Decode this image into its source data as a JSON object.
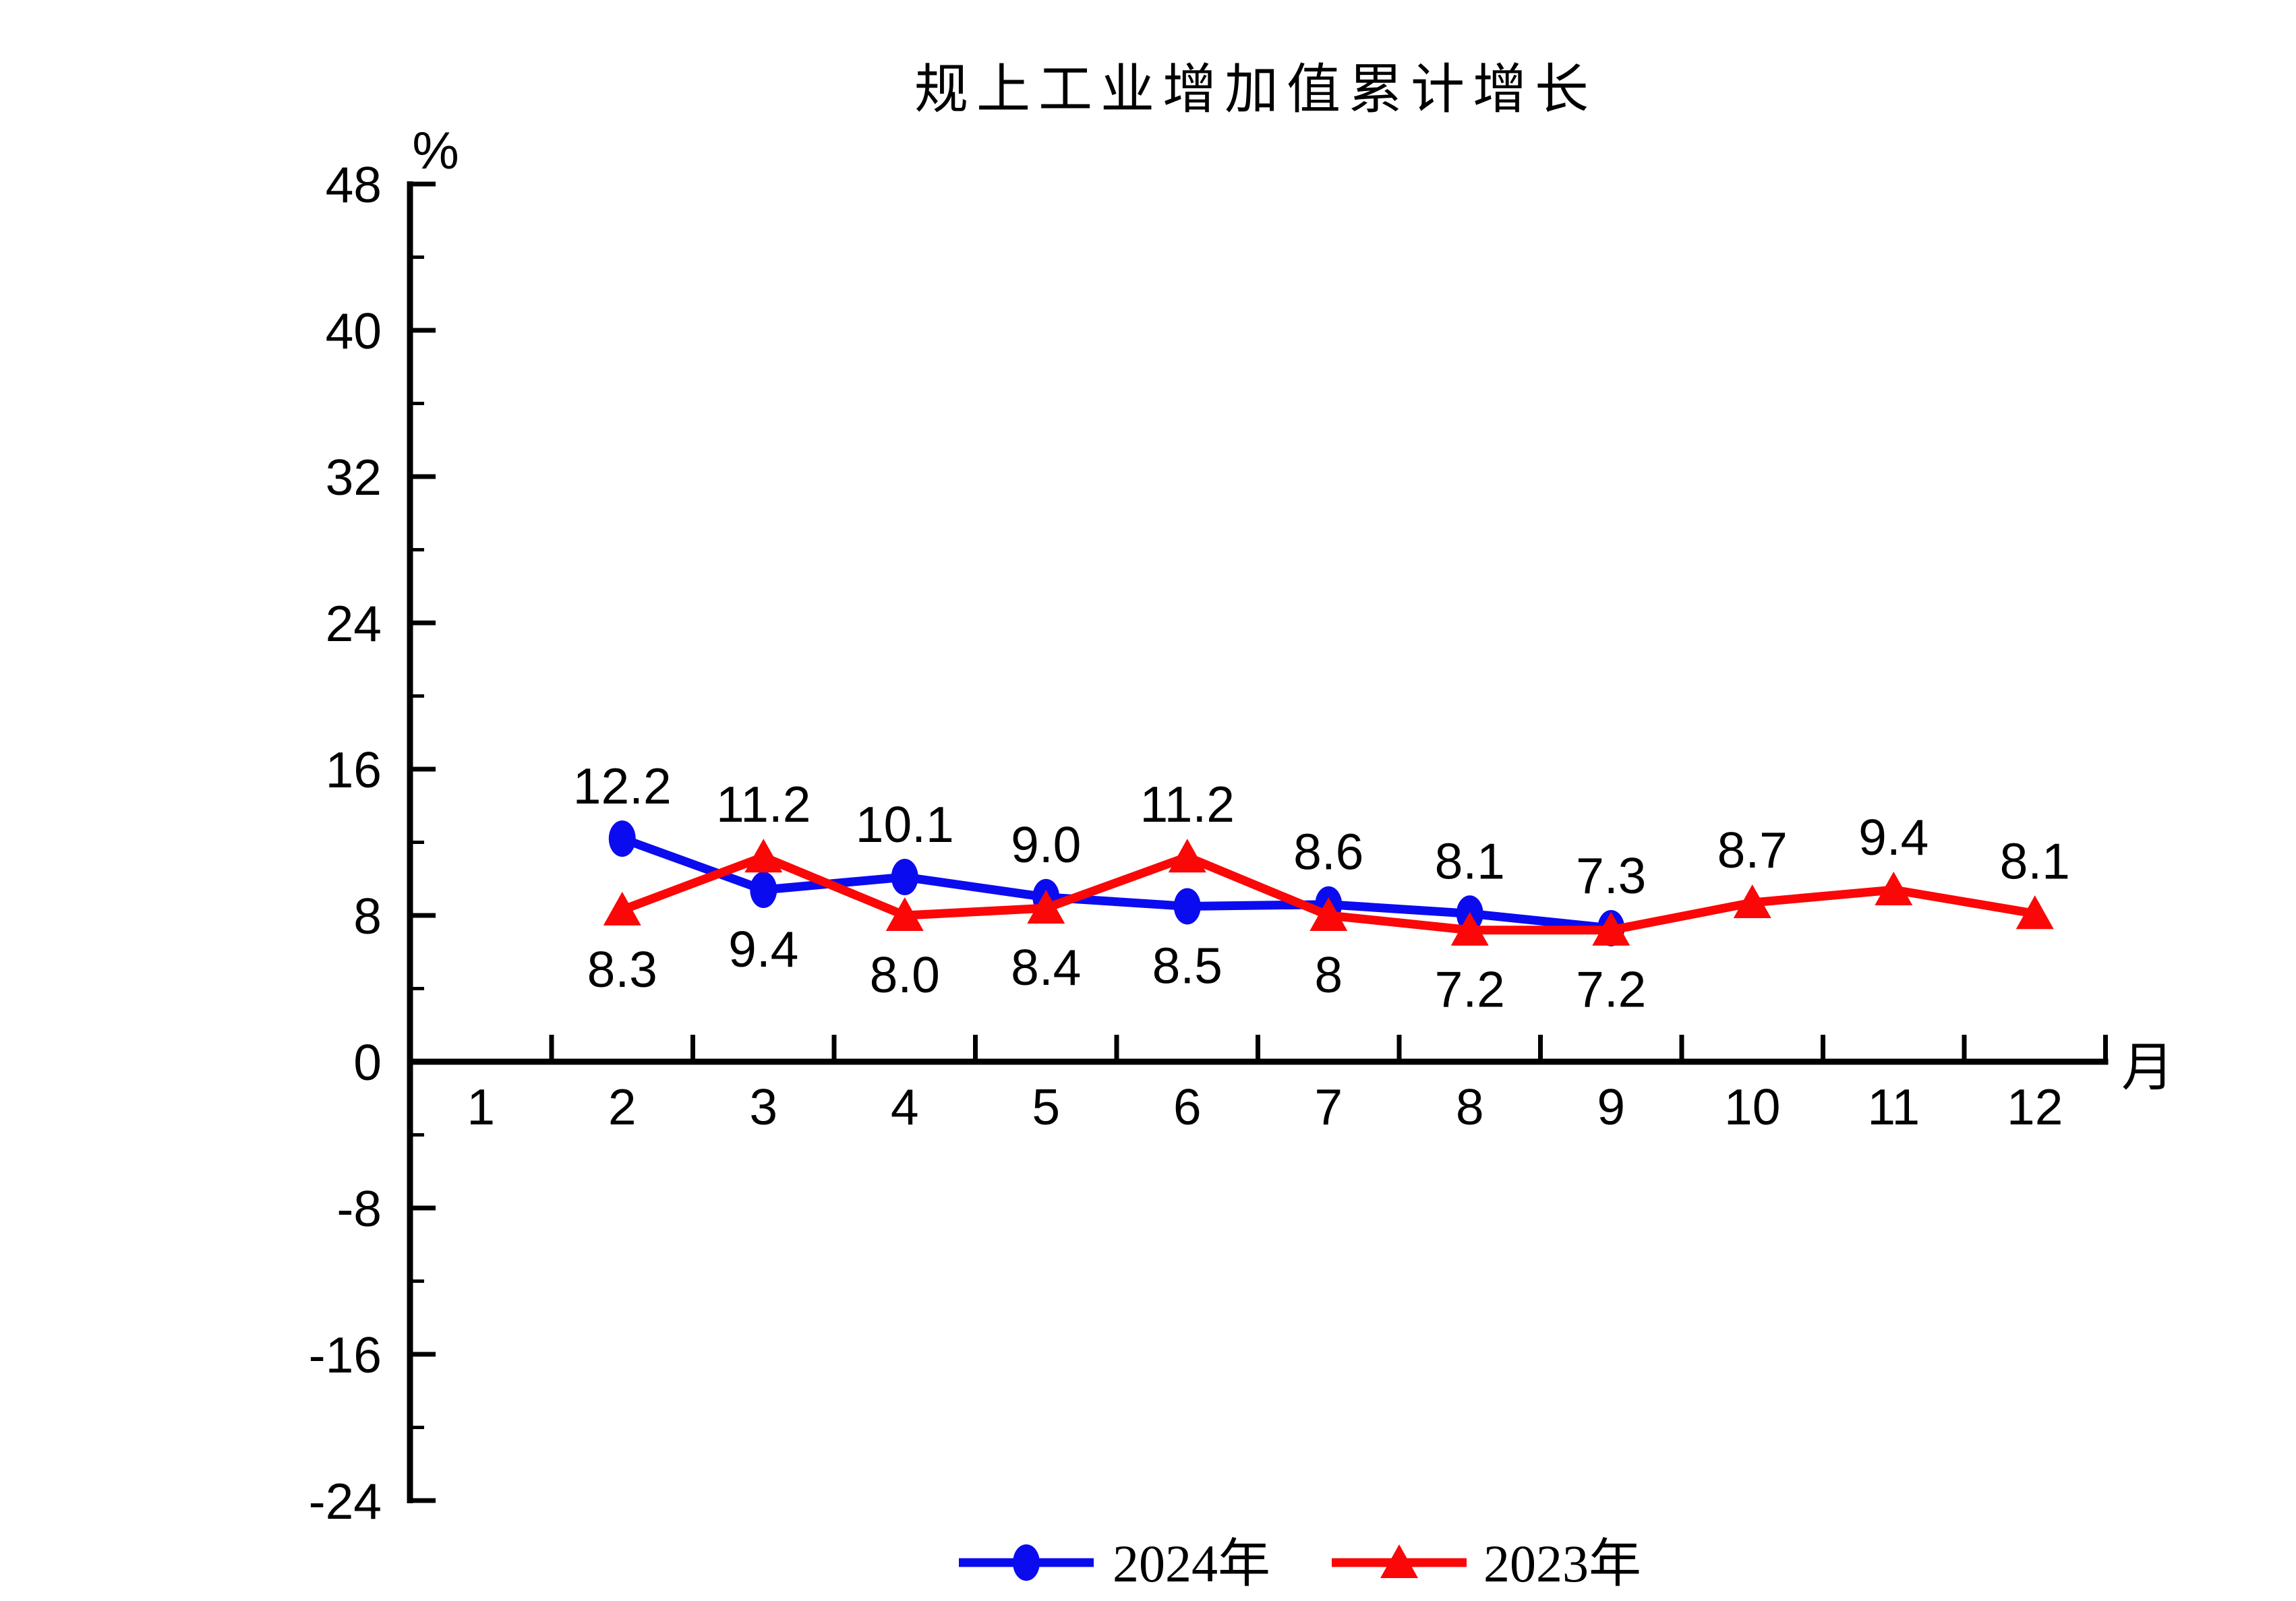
{
  "chart_data": {
    "type": "line",
    "title": "规上工业增加值累计增长",
    "ylabel": "%",
    "xlabel": "月",
    "x_categories": [
      "1",
      "2",
      "3",
      "4",
      "5",
      "6",
      "7",
      "8",
      "9",
      "10",
      "11",
      "12"
    ],
    "ylim": [
      -24,
      48
    ],
    "y_major_ticks": [
      48,
      40,
      32,
      24,
      16,
      8,
      0,
      -8,
      -16,
      -24
    ],
    "y_minor_ticks": [
      44,
      36,
      28,
      20,
      12,
      4,
      -4,
      -12,
      -20
    ],
    "grid": "off",
    "legend_position": "bottom-center",
    "axis_color": "#000000",
    "series": [
      {
        "name": "2024年",
        "color": "#0b0bf0",
        "marker": "ellipse",
        "points": [
          {
            "month": 2,
            "value": 12.2,
            "label": "12.2",
            "label_side": "above"
          },
          {
            "month": 3,
            "value": 9.4,
            "label": "9.4",
            "label_side": "below"
          },
          {
            "month": 4,
            "value": 10.1,
            "label": "10.1",
            "label_side": "above"
          },
          {
            "month": 5,
            "value": 9.0,
            "label": "9.0",
            "label_side": "above"
          },
          {
            "month": 6,
            "value": 8.5,
            "label": "8.5",
            "label_side": "below"
          },
          {
            "month": 7,
            "value": 8.6,
            "label": "8.6",
            "label_side": "above"
          },
          {
            "month": 8,
            "value": 8.1,
            "label": "8.1",
            "label_side": "above"
          },
          {
            "month": 9,
            "value": 7.3,
            "label": "7.3",
            "label_side": "above"
          }
        ]
      },
      {
        "name": "2023年",
        "color": "#fb0707",
        "marker": "triangle",
        "points": [
          {
            "month": 2,
            "value": 8.3,
            "label": "8.3",
            "label_side": "below"
          },
          {
            "month": 3,
            "value": 11.2,
            "label": "11.2",
            "label_side": "above"
          },
          {
            "month": 4,
            "value": 8.0,
            "label": "8.0",
            "label_side": "below"
          },
          {
            "month": 5,
            "value": 8.4,
            "label": "8.4",
            "label_side": "below"
          },
          {
            "month": 6,
            "value": 11.2,
            "label": "11.2",
            "label_side": "above"
          },
          {
            "month": 7,
            "value": 8.0,
            "label": "8",
            "label_side": "below"
          },
          {
            "month": 8,
            "value": 7.2,
            "label": "7.2",
            "label_side": "below"
          },
          {
            "month": 9,
            "value": 7.2,
            "label": "7.2",
            "label_side": "below"
          },
          {
            "month": 10,
            "value": 8.7,
            "label": "8.7",
            "label_side": "above"
          },
          {
            "month": 11,
            "value": 9.4,
            "label": "9.4",
            "label_side": "above"
          },
          {
            "month": 12,
            "value": 8.1,
            "label": "8.1",
            "label_side": "above"
          }
        ]
      }
    ]
  }
}
